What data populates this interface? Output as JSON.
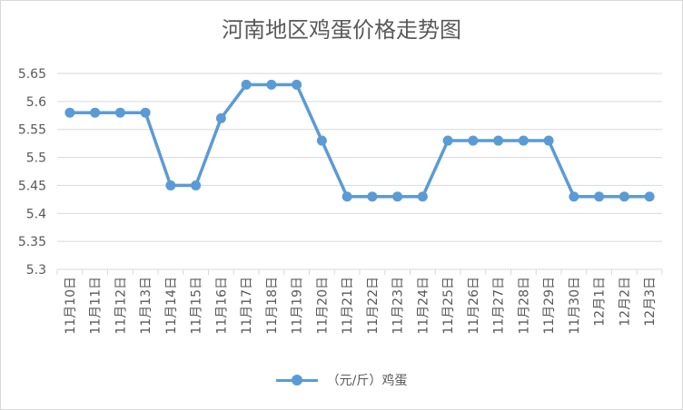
{
  "chart_data": {
    "type": "line",
    "title": "河南地区鸡蛋价格走势图",
    "categories": [
      "11月10日",
      "11月11日",
      "11月12日",
      "11月13日",
      "11月14日",
      "11月15日",
      "11月16日",
      "11月17日",
      "11月18日",
      "11月19日",
      "11月20日",
      "11月21日",
      "11月22日",
      "11月23日",
      "11月24日",
      "11月25日",
      "11月26日",
      "11月27日",
      "11月28日",
      "11月29日",
      "11月30日",
      "12月1日",
      "12月2日",
      "12月3日"
    ],
    "series": [
      {
        "name": "（元/斤）鸡蛋",
        "color": "#5b9bd5",
        "values": [
          5.58,
          5.58,
          5.58,
          5.58,
          5.45,
          5.45,
          5.57,
          5.63,
          5.63,
          5.63,
          5.53,
          5.43,
          5.43,
          5.43,
          5.43,
          5.53,
          5.53,
          5.53,
          5.53,
          5.53,
          5.43,
          5.43,
          5.43,
          5.43
        ]
      }
    ],
    "yticks": [
      "5.3",
      "5.35",
      "5.4",
      "5.45",
      "5.5",
      "5.55",
      "5.6",
      "5.65"
    ],
    "ylim": [
      5.3,
      5.65
    ],
    "grid": true,
    "legend_position": "bottom"
  }
}
